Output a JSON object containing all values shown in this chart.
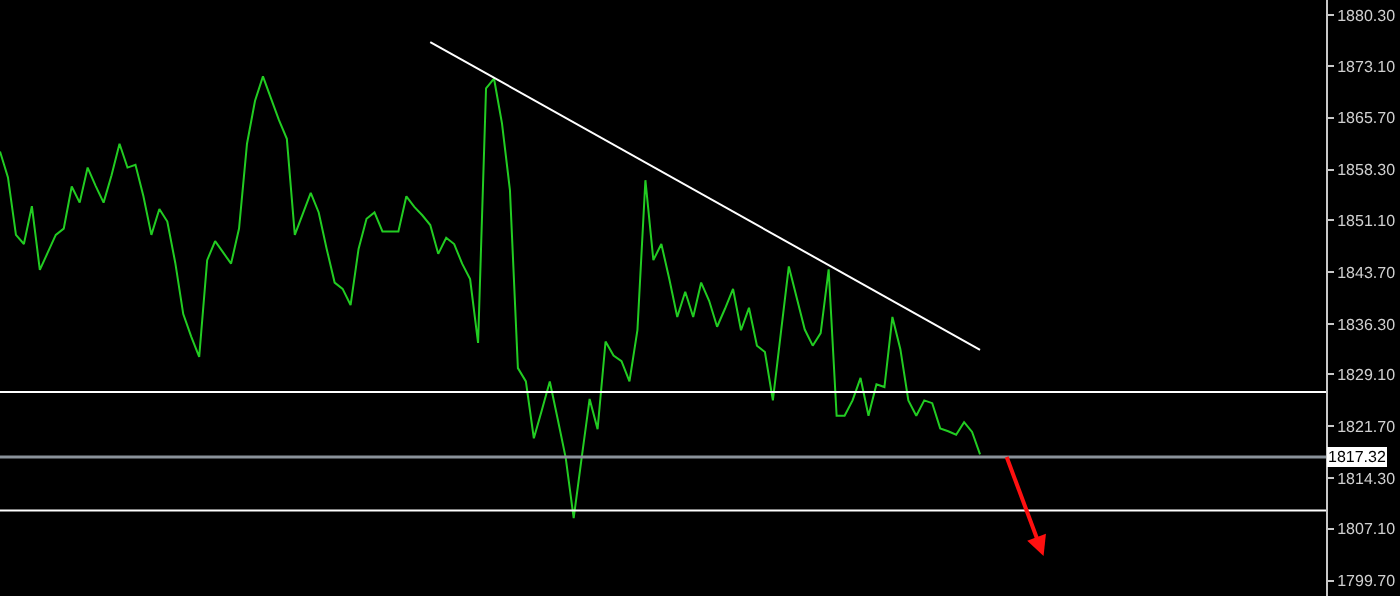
{
  "chart_data": {
    "type": "line",
    "categories": [
      null,
      null,
      null,
      null,
      null,
      null,
      null,
      null,
      null,
      null,
      null,
      null,
      null,
      null,
      null,
      null,
      null,
      null,
      null,
      null,
      null,
      null,
      null,
      null,
      null,
      null,
      null,
      null,
      null,
      null,
      null,
      null,
      null,
      null,
      null,
      null,
      null,
      null,
      null,
      null,
      null,
      null,
      null,
      null,
      null,
      null,
      null,
      null,
      null,
      null,
      null,
      null,
      null,
      null,
      null,
      null,
      null,
      null,
      null,
      null,
      null,
      null,
      null,
      null,
      null,
      null,
      null,
      null,
      null,
      null,
      null,
      null,
      null,
      null,
      null,
      null,
      null,
      null,
      null,
      null,
      null,
      null,
      null,
      null,
      null,
      null,
      null,
      null,
      null,
      null,
      null,
      null,
      null,
      null,
      null,
      null,
      null,
      null,
      null,
      null,
      null,
      null,
      null,
      null,
      null,
      null,
      null,
      null,
      null,
      null,
      null,
      null,
      null,
      null,
      null,
      null,
      null,
      null,
      null,
      null,
      null,
      null,
      null,
      null
    ],
    "series": [
      {
        "color": "#22cc22",
        "values": [
          1860.9,
          1857.2,
          1849.0,
          1847.7,
          1853.1,
          1844.0,
          1846.5,
          1849.0,
          1849.9,
          1855.9,
          1853.6,
          1858.6,
          1856.0,
          1853.6,
          1857.5,
          1862.0,
          1858.6,
          1859.0,
          1854.5,
          1849.0,
          1852.7,
          1850.9,
          1845.0,
          1837.7,
          1834.5,
          1831.6,
          1845.4,
          1848.1,
          1846.5,
          1844.9,
          1849.9,
          1862.0,
          1868.1,
          1871.6,
          1868.5,
          1865.4,
          1862.7,
          1849.0,
          1852.0,
          1855.0,
          1852.2,
          1847.0,
          1842.2,
          1841.3,
          1839.0,
          1847.0,
          1851.3,
          1852.2,
          1849.5,
          1849.5,
          1849.5,
          1854.5,
          1853.0,
          1851.8,
          1850.4,
          1846.3,
          1848.6,
          1847.7,
          1844.9,
          1842.7,
          1833.6,
          1869.9,
          1871.3,
          1864.9,
          1855.4,
          1830.0,
          1828.1,
          1820.0,
          1824.0,
          1828.1,
          1822.7,
          1817.2,
          1808.6,
          1817.2,
          1825.6,
          1821.3,
          1833.8,
          1831.8,
          1831.0,
          1828.1,
          1835.4,
          1856.8,
          1845.4,
          1847.7,
          1842.7,
          1837.3,
          1840.9,
          1837.3,
          1842.2,
          1839.6,
          1835.9,
          1838.5,
          1841.3,
          1835.4,
          1838.6,
          1833.2,
          1832.3,
          1825.4,
          1835.0,
          1844.5,
          1840.0,
          1835.5,
          1833.2,
          1835.0,
          1844.1,
          1823.2,
          1823.2,
          1825.4,
          1828.6,
          1823.2,
          1827.7,
          1827.3,
          1837.3,
          1832.7,
          1825.4,
          1823.2,
          1825.4,
          1825.0,
          1821.4,
          1821.0,
          1820.5,
          1822.3,
          1820.9,
          1817.7
        ]
      },
      {
        "color": "#ffffff",
        "values": [
          null,
          null,
          null,
          null,
          null,
          null,
          null,
          null,
          null,
          null,
          null,
          null,
          null,
          null,
          null,
          null,
          null,
          null,
          null,
          null,
          null,
          null,
          null,
          null,
          null,
          null,
          null,
          null,
          null,
          null,
          null,
          null,
          null,
          null,
          null,
          null,
          null,
          null,
          null,
          null,
          null,
          null,
          null,
          null,
          null,
          null,
          null,
          null,
          null,
          null,
          null,
          null,
          null,
          null,
          1876.5,
          null,
          null,
          null,
          null,
          null,
          null,
          null,
          null,
          null,
          null,
          null,
          null,
          null,
          null,
          null,
          null,
          null,
          null,
          null,
          null,
          null,
          null,
          null,
          null,
          null,
          null,
          null,
          null,
          null,
          null,
          null,
          null,
          null,
          null,
          null,
          null,
          null,
          null,
          null,
          null,
          null,
          null,
          null,
          null,
          null,
          null,
          null,
          null,
          null,
          null,
          null,
          null,
          null,
          null,
          null,
          null,
          null,
          null,
          null,
          null,
          null,
          null,
          null,
          null,
          null,
          null,
          null,
          null,
          1832.6
        ]
      }
    ],
    "ref_lines": [
      {
        "axis": "y",
        "value": 1826.6,
        "color": "#ffffff"
      },
      {
        "axis": "y",
        "value": 1809.7,
        "color": "#ffffff"
      },
      {
        "axis": "y",
        "value": 1817.32,
        "label": "1817.32",
        "color": "#8a929a"
      }
    ],
    "ylim": [
      1797.5,
      1882.5
    ],
    "yticks": [
      {
        "value": 1880.3,
        "label": "1880.30"
      },
      {
        "value": 1873.1,
        "label": "1873.10"
      },
      {
        "value": 1865.7,
        "label": "1865.70"
      },
      {
        "value": 1858.3,
        "label": "1858.30"
      },
      {
        "value": 1851.1,
        "label": "1851.10"
      },
      {
        "value": 1843.7,
        "label": "1843.70"
      },
      {
        "value": 1836.3,
        "label": "1836.30"
      },
      {
        "value": 1829.1,
        "label": "1829.10"
      },
      {
        "value": 1821.7,
        "label": "1821.70"
      },
      {
        "value": 1814.3,
        "label": "1814.30"
      },
      {
        "value": 1807.1,
        "label": "1807.10"
      },
      {
        "value": 1799.7,
        "label": "1799.70"
      }
    ],
    "tick_labels": "y",
    "grid": false
  }
}
